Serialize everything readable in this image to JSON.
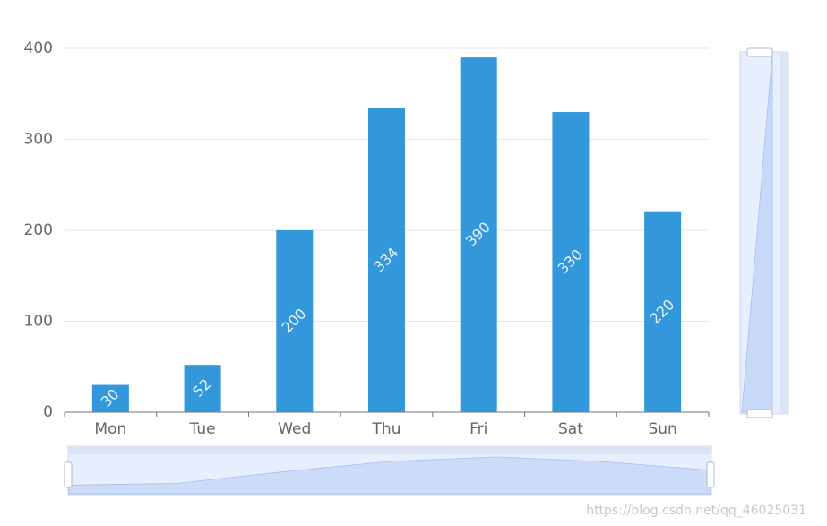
{
  "chart_data": {
    "type": "bar",
    "categories": [
      "Mon",
      "Tue",
      "Wed",
      "Thu",
      "Fri",
      "Sat",
      "Sun"
    ],
    "values": [
      30,
      52,
      200,
      334,
      390,
      330,
      220
    ],
    "color": "#3398db",
    "ylim": [
      0,
      400
    ],
    "yticks": [
      0,
      100,
      200,
      300,
      400
    ],
    "grid": true,
    "data_labels": true
  },
  "watermark": "https://blog.csdn.net/qq_46025031"
}
